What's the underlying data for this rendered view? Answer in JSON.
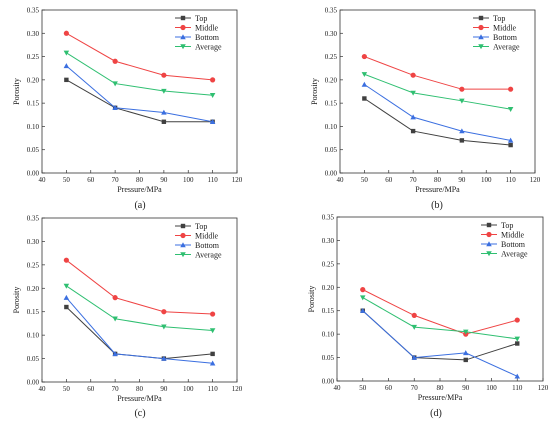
{
  "chart_data": [
    {
      "type": "line",
      "panel_label": "(a)",
      "xlabel": "Pressure/MPa",
      "ylabel": "Porosity",
      "xlim": [
        40,
        120
      ],
      "ylim": [
        0,
        0.35
      ],
      "xticks": [
        "40",
        "50",
        "60",
        "70",
        "80",
        "90",
        "100",
        "110",
        "120"
      ],
      "yticks": [
        "0.00",
        "0.05",
        "0.10",
        "0.15",
        "0.20",
        "0.25",
        "0.30",
        "0.35"
      ],
      "legend_position": "top-right",
      "grid": false,
      "x": [
        50,
        70,
        90,
        110
      ],
      "series": [
        {
          "name": "Top",
          "values": [
            0.2,
            0.14,
            0.11,
            0.11
          ],
          "color": "#404040",
          "marker": "square"
        },
        {
          "name": "Middle",
          "values": [
            0.3,
            0.24,
            0.21,
            0.2
          ],
          "color": "#ef4444",
          "marker": "circle"
        },
        {
          "name": "Bottom",
          "values": [
            0.23,
            0.14,
            0.13,
            0.11
          ],
          "color": "#3b6fe0",
          "marker": "triangle-up"
        },
        {
          "name": "Average",
          "values": [
            0.258,
            0.192,
            0.176,
            0.167
          ],
          "color": "#2fbf71",
          "marker": "triangle-down"
        }
      ]
    },
    {
      "type": "line",
      "panel_label": "(b)",
      "xlabel": "Pressure/MPa",
      "ylabel": "Porosity",
      "xlim": [
        40,
        120
      ],
      "ylim": [
        0,
        0.35
      ],
      "xticks": [
        "40",
        "50",
        "60",
        "70",
        "80",
        "90",
        "100",
        "110",
        "120"
      ],
      "yticks": [
        "0.00",
        "0.05",
        "0.10",
        "0.15",
        "0.20",
        "0.25",
        "0.30",
        "0.35"
      ],
      "legend_position": "top-right",
      "grid": false,
      "x": [
        50,
        70,
        90,
        110
      ],
      "series": [
        {
          "name": "Top",
          "values": [
            0.16,
            0.09,
            0.07,
            0.06
          ],
          "color": "#404040",
          "marker": "square"
        },
        {
          "name": "Middle",
          "values": [
            0.25,
            0.21,
            0.18,
            0.18
          ],
          "color": "#ef4444",
          "marker": "circle"
        },
        {
          "name": "Bottom",
          "values": [
            0.19,
            0.12,
            0.09,
            0.07
          ],
          "color": "#3b6fe0",
          "marker": "triangle-up"
        },
        {
          "name": "Average",
          "values": [
            0.212,
            0.172,
            0.155,
            0.137
          ],
          "color": "#2fbf71",
          "marker": "triangle-down"
        }
      ]
    },
    {
      "type": "line",
      "panel_label": "(c)",
      "xlabel": "Pressure/MPa",
      "ylabel": "Porosity",
      "xlim": [
        40,
        120
      ],
      "ylim": [
        0,
        0.35
      ],
      "xticks": [
        "40",
        "50",
        "60",
        "70",
        "80",
        "90",
        "100",
        "110",
        "120"
      ],
      "yticks": [
        "0.00",
        "0.05",
        "0.10",
        "0.15",
        "0.20",
        "0.25",
        "0.30",
        "0.35"
      ],
      "legend_position": "top-right",
      "grid": false,
      "x": [
        50,
        70,
        90,
        110
      ],
      "series": [
        {
          "name": "Top",
          "values": [
            0.16,
            0.06,
            0.05,
            0.06
          ],
          "color": "#404040",
          "marker": "square"
        },
        {
          "name": "Middle",
          "values": [
            0.26,
            0.18,
            0.15,
            0.145
          ],
          "color": "#ef4444",
          "marker": "circle"
        },
        {
          "name": "Bottom",
          "values": [
            0.18,
            0.06,
            0.05,
            0.04
          ],
          "color": "#3b6fe0",
          "marker": "triangle-up"
        },
        {
          "name": "Average",
          "values": [
            0.205,
            0.135,
            0.118,
            0.11
          ],
          "color": "#2fbf71",
          "marker": "triangle-down"
        }
      ]
    },
    {
      "type": "line",
      "panel_label": "(d)",
      "xlabel": "Pressure/MPa",
      "ylabel": "Porosity",
      "xlim": [
        40,
        120
      ],
      "ylim": [
        0,
        0.35
      ],
      "xticks": [
        "40",
        "50",
        "60",
        "70",
        "80",
        "90",
        "100",
        "110",
        "120"
      ],
      "yticks": [
        "0.00",
        "0.05",
        "0.10",
        "0.15",
        "0.20",
        "0.25",
        "0.30",
        "0.35"
      ],
      "legend_position": "top-right",
      "grid": false,
      "x": [
        50,
        70,
        90,
        110
      ],
      "series": [
        {
          "name": "Top",
          "values": [
            0.15,
            0.05,
            0.045,
            0.08
          ],
          "color": "#404040",
          "marker": "square"
        },
        {
          "name": "Middle",
          "values": [
            0.195,
            0.14,
            0.1,
            0.13
          ],
          "color": "#ef4444",
          "marker": "circle"
        },
        {
          "name": "Bottom",
          "values": [
            0.15,
            0.05,
            0.06,
            0.01
          ],
          "color": "#3b6fe0",
          "marker": "triangle-up"
        },
        {
          "name": "Average",
          "values": [
            0.178,
            0.115,
            0.105,
            0.09
          ],
          "color": "#2fbf71",
          "marker": "triangle-down"
        }
      ]
    }
  ]
}
